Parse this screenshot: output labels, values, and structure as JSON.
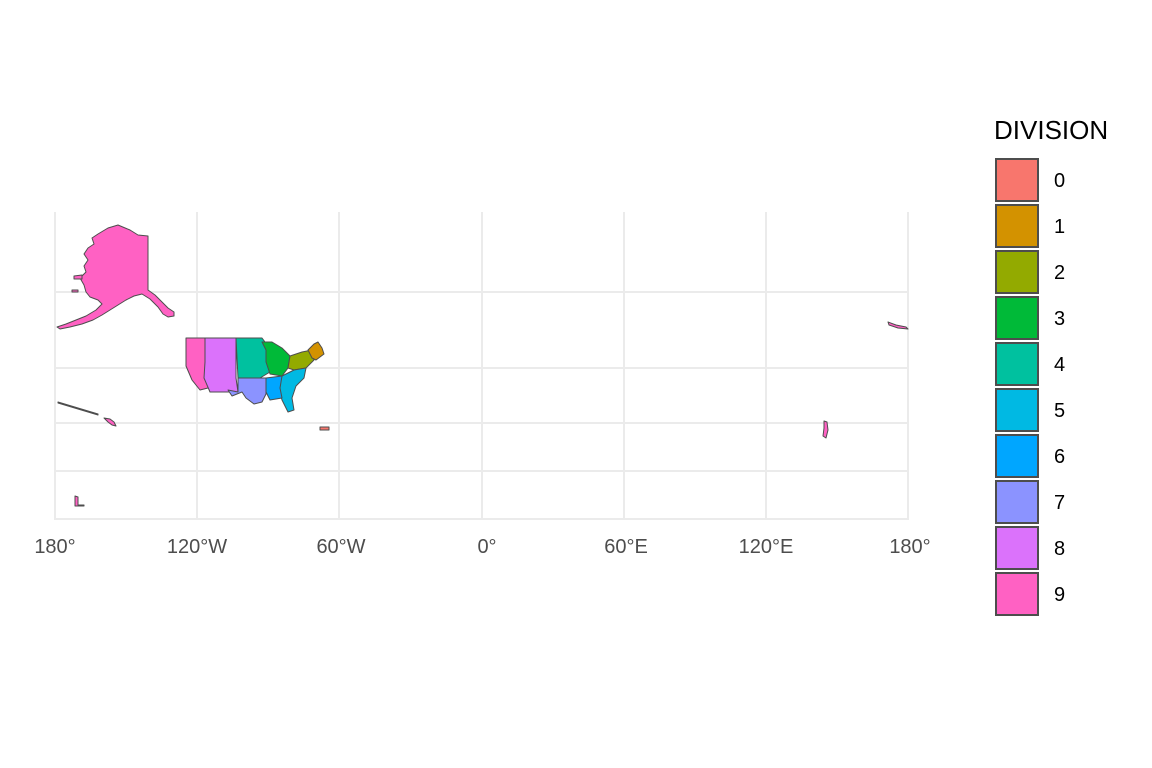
{
  "map": {
    "x_axis": {
      "ticks": [
        "180°",
        "120°W",
        "60°W",
        "0°",
        "60°E",
        "120°E",
        "180°"
      ],
      "tick_values": [
        -180,
        -120,
        -60,
        0,
        60,
        120,
        180
      ]
    },
    "legend": {
      "title": "DIVISION",
      "items": [
        {
          "label": "0",
          "color": "#F8766D"
        },
        {
          "label": "1",
          "color": "#D39200"
        },
        {
          "label": "2",
          "color": "#93AA00"
        },
        {
          "label": "3",
          "color": "#00BA38"
        },
        {
          "label": "4",
          "color": "#00C19F"
        },
        {
          "label": "5",
          "color": "#00B9E3"
        },
        {
          "label": "6",
          "color": "#00A6FF"
        },
        {
          "label": "7",
          "color": "#8B93FF"
        },
        {
          "label": "8",
          "color": "#DB72FB"
        },
        {
          "label": "9",
          "color": "#FF61C3"
        }
      ]
    },
    "legend_placement": "right",
    "grid": true
  }
}
